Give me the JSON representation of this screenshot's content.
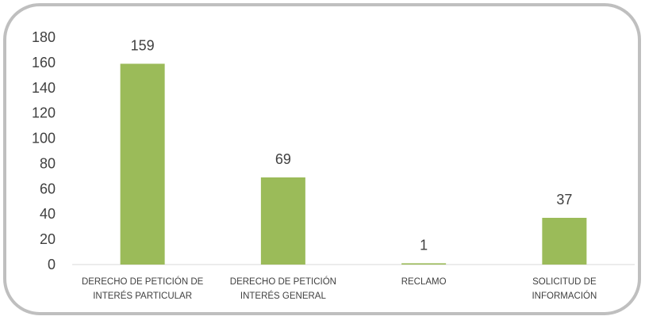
{
  "chart_data": {
    "type": "bar",
    "categories": [
      [
        "DERECHO DE PETICIÓN DE",
        "INTERÉS PARTICULAR"
      ],
      [
        "DERECHO DE PETICIÓN",
        "INTERÉS GENERAL"
      ],
      [
        "RECLAMO"
      ],
      [
        "SOLICITUD DE",
        "INFORMACIÓN"
      ]
    ],
    "values": [
      159,
      69,
      1,
      37
    ],
    "data_labels": [
      "159",
      "69",
      "1",
      "37"
    ],
    "yticks": [
      0,
      20,
      40,
      60,
      80,
      100,
      120,
      140,
      160,
      180
    ],
    "ylim": [
      0,
      180
    ],
    "title": "",
    "xlabel": "",
    "ylabel": "",
    "grid": false,
    "legend": "none",
    "colors": {
      "bar": "#9bbb59",
      "axis": "#d9d9d9",
      "text": "#404040",
      "frame": "#bfbfbf"
    }
  }
}
